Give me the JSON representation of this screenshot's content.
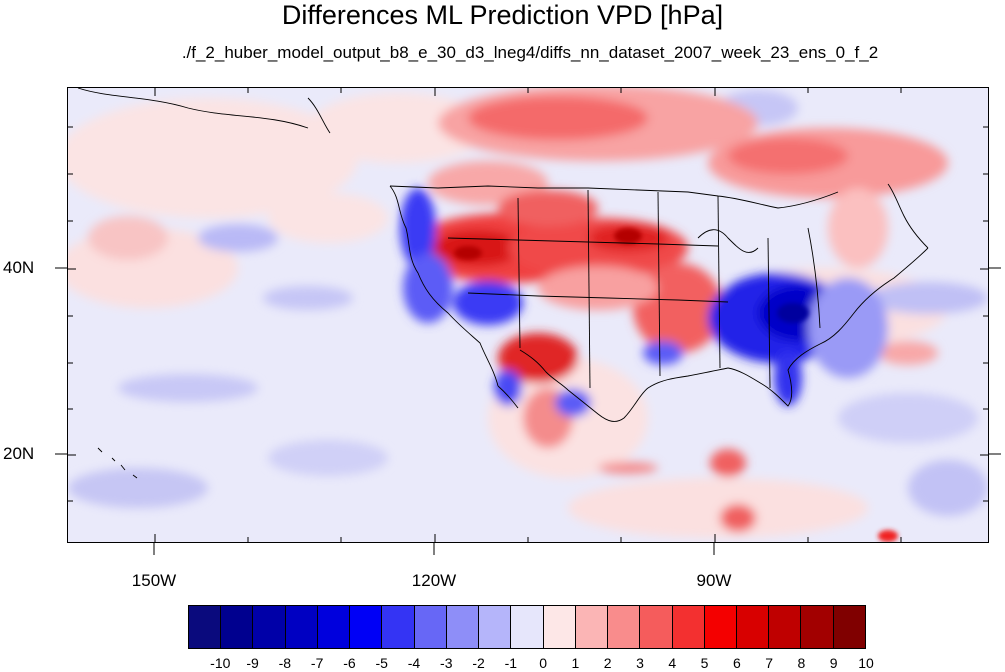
{
  "title": "Differences ML Prediction VPD [hPa]",
  "subtitle": "./f_2_huber_model_output_b8_e_30_d3_lneg4/diffs_nn_dataset_2007_week_23_ens_0_f_2",
  "map": {
    "lat_labels": [
      "40N",
      "20N"
    ],
    "lon_labels": [
      "150W",
      "120W",
      "90W"
    ]
  },
  "colorbar": {
    "labels": [
      "-10",
      "-9",
      "-8",
      "-7",
      "-6",
      "-5",
      "-4",
      "-3",
      "-2",
      "-1",
      "0",
      "1",
      "2",
      "3",
      "4",
      "5",
      "6",
      "7",
      "8",
      "9",
      "10"
    ],
    "colors": [
      "#0a0a7d",
      "#00008f",
      "#0000a8",
      "#0000c2",
      "#0000dd",
      "#0000f6",
      "#3434f4",
      "#6767f6",
      "#8e8ef8",
      "#b5b5fa",
      "#e6e6fb",
      "#fde7e7",
      "#fbb5b5",
      "#f98c8c",
      "#f55c5c",
      "#f33030",
      "#f40000",
      "#d80000",
      "#bf0000",
      "#a20000",
      "#800000"
    ]
  },
  "colors": {
    "background": "#ffffff",
    "map_base": "#eaeafa"
  }
}
